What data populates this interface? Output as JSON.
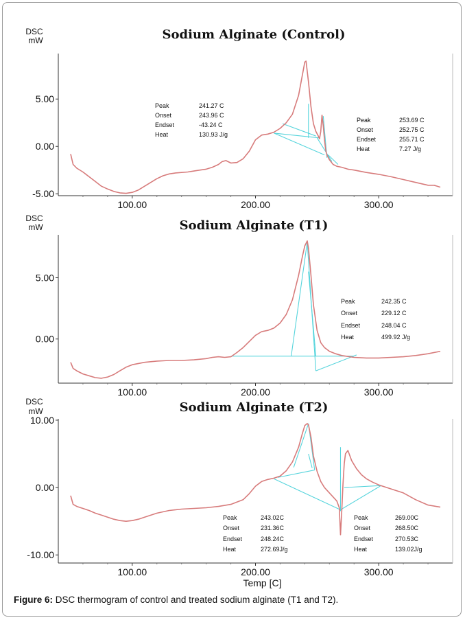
{
  "caption": {
    "label": "Figure 6:",
    "text": " DSC thermogram of control and treated sodium alginate (T1 and T2)."
  },
  "colors": {
    "curve": "#d77b7b",
    "baseline": "#55d4dc",
    "axis": "#333333"
  },
  "chart_data": [
    {
      "type": "line",
      "title": "Sodium Alginate (Control)",
      "ylabel": "DSC\nmW",
      "xlabel": "",
      "xlim": [
        40,
        360
      ],
      "ylim": [
        -5.2,
        9.8
      ],
      "xticks": [
        "100.00",
        "200.00",
        "300.00"
      ],
      "xtick_values": [
        100,
        200,
        300
      ],
      "yticks": [
        "5.00",
        "0.00",
        "-5.00"
      ],
      "ytick_values": [
        5,
        0,
        -5
      ],
      "series": [
        {
          "x": [
            50,
            52,
            55,
            60,
            65,
            70,
            75,
            80,
            85,
            90,
            95,
            100,
            105,
            110,
            115,
            120,
            125,
            130,
            135,
            140,
            145,
            150,
            155,
            160,
            165,
            170,
            173,
            176,
            180,
            185,
            190,
            195,
            200,
            205,
            210,
            215,
            220,
            225,
            230,
            235,
            238,
            240,
            241,
            243,
            245,
            247,
            249,
            251,
            252,
            253,
            254,
            255,
            256,
            257,
            258,
            260,
            263,
            266,
            270,
            275,
            280,
            290,
            300,
            310,
            320,
            330,
            340,
            345,
            350
          ],
          "y": [
            -0.8,
            -1.9,
            -2.3,
            -2.7,
            -3.2,
            -3.7,
            -4.2,
            -4.5,
            -4.75,
            -4.9,
            -4.95,
            -4.85,
            -4.6,
            -4.2,
            -3.8,
            -3.4,
            -3.1,
            -2.9,
            -2.8,
            -2.75,
            -2.7,
            -2.6,
            -2.5,
            -2.4,
            -2.2,
            -1.9,
            -1.6,
            -1.5,
            -1.75,
            -1.7,
            -1.3,
            -0.5,
            0.7,
            1.2,
            1.3,
            1.5,
            1.9,
            2.5,
            3.4,
            5.4,
            7.5,
            8.9,
            9.0,
            6.8,
            4.2,
            2.4,
            1.6,
            1.1,
            0.8,
            1.6,
            3.3,
            2.2,
            0.7,
            -0.4,
            -0.9,
            -1.4,
            -1.9,
            -2.1,
            -2.2,
            -2.4,
            -2.5,
            -2.75,
            -2.95,
            -3.2,
            -3.5,
            -3.8,
            -4.1,
            -4.1,
            -4.3
          ]
        }
      ],
      "annotations": [
        {
          "label": "Peak",
          "value": "241.27 C"
        },
        {
          "label": "Onset",
          "value": "243.96 C"
        },
        {
          "label": "Endset",
          "value": "-43.24 C"
        },
        {
          "label": "Heat",
          "value": "130.93 J/g"
        },
        {
          "label": "Peak",
          "value": "253.69 C"
        },
        {
          "label": "Onset",
          "value": "252.75 C"
        },
        {
          "label": "Endset",
          "value": "255.71 C"
        },
        {
          "label": "Heat",
          "value": "7.27 J/g"
        }
      ],
      "grid": false
    },
    {
      "type": "line",
      "title": "Sodium Alginate (T1)",
      "ylabel": "DSC\nmW",
      "xlabel": "",
      "xlim": [
        40,
        360
      ],
      "ylim": [
        -3.6,
        8.5
      ],
      "xticks": [
        "100.00",
        "200.00",
        "300.00"
      ],
      "xtick_values": [
        100,
        200,
        300
      ],
      "yticks": [
        "5.00",
        "0.00"
      ],
      "ytick_values": [
        5,
        0
      ],
      "series": [
        {
          "x": [
            50,
            52,
            55,
            60,
            65,
            70,
            75,
            80,
            85,
            90,
            95,
            100,
            110,
            120,
            130,
            140,
            150,
            160,
            165,
            170,
            175,
            180,
            185,
            190,
            195,
            200,
            205,
            210,
            215,
            220,
            225,
            230,
            235,
            238,
            240,
            242,
            243,
            245,
            247,
            250,
            253,
            256,
            260,
            265,
            270,
            280,
            290,
            300,
            310,
            320,
            330,
            340,
            350
          ],
          "y": [
            -1.9,
            -2.4,
            -2.6,
            -2.85,
            -3.0,
            -3.15,
            -3.2,
            -3.1,
            -2.9,
            -2.6,
            -2.3,
            -2.1,
            -1.9,
            -1.8,
            -1.75,
            -1.75,
            -1.7,
            -1.6,
            -1.5,
            -1.45,
            -1.5,
            -1.45,
            -1.1,
            -0.7,
            -0.2,
            0.3,
            0.6,
            0.7,
            0.9,
            1.3,
            2.0,
            3.2,
            5.2,
            6.7,
            7.6,
            8.0,
            7.4,
            5.2,
            2.8,
            0.7,
            -0.3,
            -0.7,
            -1.0,
            -1.2,
            -1.35,
            -1.5,
            -1.55,
            -1.55,
            -1.5,
            -1.45,
            -1.35,
            -1.2,
            -1.0
          ]
        }
      ],
      "annotations": [
        {
          "label": "Peak",
          "value": "242.35 C"
        },
        {
          "label": "Onset",
          "value": "229.12 C"
        },
        {
          "label": "Endset",
          "value": "248.04 C"
        },
        {
          "label": "Heat",
          "value": "499.92 J/g"
        }
      ],
      "grid": false
    },
    {
      "type": "line",
      "title": "Sodium Alginate (T2)",
      "ylabel": "DSC\nmW",
      "xlabel": "Temp [C]",
      "xlim": [
        40,
        360
      ],
      "ylim": [
        -11.2,
        10.2
      ],
      "xticks": [
        "100.00",
        "200.00",
        "300.00"
      ],
      "xtick_values": [
        100,
        200,
        300
      ],
      "yticks": [
        "10.00",
        "0.00",
        "-10.00"
      ],
      "ytick_values": [
        10,
        0,
        -10
      ],
      "series": [
        {
          "x": [
            50,
            52,
            55,
            60,
            65,
            70,
            75,
            80,
            85,
            90,
            95,
            100,
            105,
            110,
            120,
            130,
            140,
            150,
            160,
            170,
            180,
            190,
            195,
            200,
            205,
            210,
            215,
            220,
            225,
            230,
            235,
            238,
            240,
            242,
            243,
            245,
            247,
            250,
            253,
            256,
            260,
            263,
            266,
            268,
            269,
            270,
            271,
            272,
            273,
            275,
            278,
            282,
            286,
            290,
            295,
            300,
            310,
            320,
            330,
            340,
            350
          ],
          "y": [
            -1.2,
            -2.5,
            -2.8,
            -3.1,
            -3.4,
            -3.8,
            -4.1,
            -4.4,
            -4.7,
            -4.9,
            -5.0,
            -4.9,
            -4.7,
            -4.4,
            -3.8,
            -3.4,
            -3.2,
            -3.1,
            -3.0,
            -2.8,
            -2.5,
            -1.8,
            -0.9,
            0.2,
            0.9,
            1.2,
            1.4,
            1.7,
            2.5,
            3.8,
            6.0,
            8.0,
            9.2,
            9.5,
            9.3,
            7.5,
            4.7,
            2.4,
            0.9,
            0.0,
            -0.8,
            -1.4,
            -2.0,
            -3.0,
            -7.0,
            -3.5,
            0.5,
            3.5,
            5.0,
            5.5,
            4.0,
            2.8,
            1.9,
            1.3,
            0.8,
            0.4,
            -0.2,
            -0.8,
            -1.8,
            -2.6,
            -2.9
          ]
        }
      ],
      "annotations": [
        {
          "label": "Peak",
          "value": "243.02C"
        },
        {
          "label": "Onset",
          "value": "231.36C"
        },
        {
          "label": "Endset",
          "value": "248.24C"
        },
        {
          "label": "Heat",
          "value": "272.69J/g"
        },
        {
          "label": "Peak",
          "value": "269.00C"
        },
        {
          "label": "Onset",
          "value": "268.50C"
        },
        {
          "label": "Endset",
          "value": "270.53C"
        },
        {
          "label": "Heat",
          "value": "139.02J/g"
        }
      ],
      "grid": false
    }
  ]
}
